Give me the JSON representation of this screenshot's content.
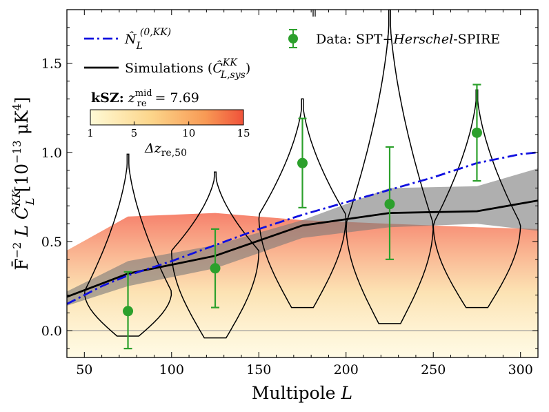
{
  "chart_data": {
    "type": "line",
    "xlabel": "Multipole L",
    "ylabel": "F̄⁻² L Ĉ_L^KK [10⁻¹³ μK⁴]",
    "xlim": [
      40,
      310
    ],
    "ylim": [
      -0.15,
      1.8
    ],
    "x_ticks": [
      "50",
      "100",
      "150",
      "200",
      "250",
      "300"
    ],
    "y_ticks": [
      "0.0",
      "0.5",
      "1.0",
      "1.5"
    ],
    "x_tick_values": [
      50,
      100,
      150,
      200,
      250,
      300
    ],
    "y_tick_values": [
      0.0,
      0.5,
      1.0,
      1.5
    ],
    "series": [
      {
        "name": "N_L^(0,KK)",
        "style": "dash-dot",
        "color": "#1010e0",
        "x": [
          40,
          60,
          75,
          100,
          125,
          150,
          175,
          200,
          225,
          250,
          275,
          300,
          310
        ],
        "y": [
          0.15,
          0.25,
          0.31,
          0.39,
          0.48,
          0.57,
          0.65,
          0.72,
          0.79,
          0.86,
          0.94,
          0.99,
          1.0
        ]
      },
      {
        "name": "Simulations (C_L,sys^KK)",
        "style": "solid",
        "color": "#000000",
        "x": [
          40,
          75,
          125,
          175,
          225,
          275,
          310
        ],
        "y": [
          0.19,
          0.32,
          0.42,
          0.59,
          0.66,
          0.67,
          0.73
        ],
        "band_lower": [
          0.14,
          0.25,
          0.35,
          0.52,
          0.58,
          0.6,
          0.56
        ],
        "band_upper": [
          0.22,
          0.39,
          0.48,
          0.62,
          0.8,
          0.81,
          0.91
        ]
      }
    ],
    "data_points": {
      "name": "Data: SPT+Herschel-SPIRE",
      "color": "#2ca02c",
      "x": [
        75,
        125,
        175,
        225,
        275
      ],
      "y": [
        0.11,
        0.35,
        0.94,
        0.71,
        1.11
      ],
      "yerr_low": [
        0.21,
        0.22,
        0.25,
        0.31,
        0.27
      ],
      "yerr_high": [
        0.22,
        0.22,
        0.25,
        0.32,
        0.27
      ]
    },
    "violins": [
      {
        "center": 75,
        "y_min": -0.03,
        "y_max": 0.99,
        "peak": 0.22
      },
      {
        "center": 125,
        "y_min": -0.04,
        "y_max": 0.89,
        "peak": 0.45
      },
      {
        "center": 175,
        "y_min": 0.13,
        "y_max": 1.3,
        "peak": 0.65
      },
      {
        "center": 225,
        "y_min": 0.04,
        "y_max": 1.8,
        "peak": 0.6
      },
      {
        "center": 275,
        "y_min": 0.13,
        "y_max": 1.35,
        "peak": 0.6
      }
    ],
    "background_model": {
      "x": [
        40,
        75,
        125,
        175,
        225,
        275,
        310
      ],
      "y_top": [
        0.45,
        0.64,
        0.66,
        0.62,
        0.6,
        0.58,
        0.57
      ]
    },
    "colorbar": {
      "title": "kSZ: z_re^mid = 7.69",
      "title_bold": "kSZ:",
      "title_rest": "z",
      "title_sup": "mid",
      "title_sub": "re",
      "title_value": "= 7.69",
      "label": "Δz_re,50",
      "label_main": "Δz",
      "label_sub": "re,50",
      "ticks": [
        "1",
        "5",
        "10",
        "15"
      ],
      "tick_values": [
        1,
        5,
        10,
        15
      ],
      "range": [
        1,
        15
      ],
      "color_low": "#fff8d0",
      "color_high": "#f0523a"
    },
    "legend": {
      "entry1_main": "N̂",
      "entry1_sub": "L",
      "entry1_sup": "(0,KK)",
      "entry2_text": "Simulations (",
      "entry2_main": "Ĉ",
      "entry2_sup": "KK",
      "entry2_sub": "L,sys",
      "entry2_close": ")",
      "entry3_pre": "Data: SPT+",
      "entry3_italic": "Herschel",
      "entry3_post": "-SPIRE",
      "placement": "top-left and top-right"
    },
    "axis_text": {
      "x_main": "Multipole ",
      "x_italic": "L",
      "y_prefix": "F̄",
      "y_exp": "−2",
      "y_L": " L ",
      "y_C": "Ĉ",
      "y_C_sup": "KK",
      "y_C_sub": "L",
      "y_units_pre": " [10",
      "y_units_exp": "−13",
      "y_units_mid": " μK",
      "y_units_exp2": "4",
      "y_units_post": "]"
    }
  }
}
